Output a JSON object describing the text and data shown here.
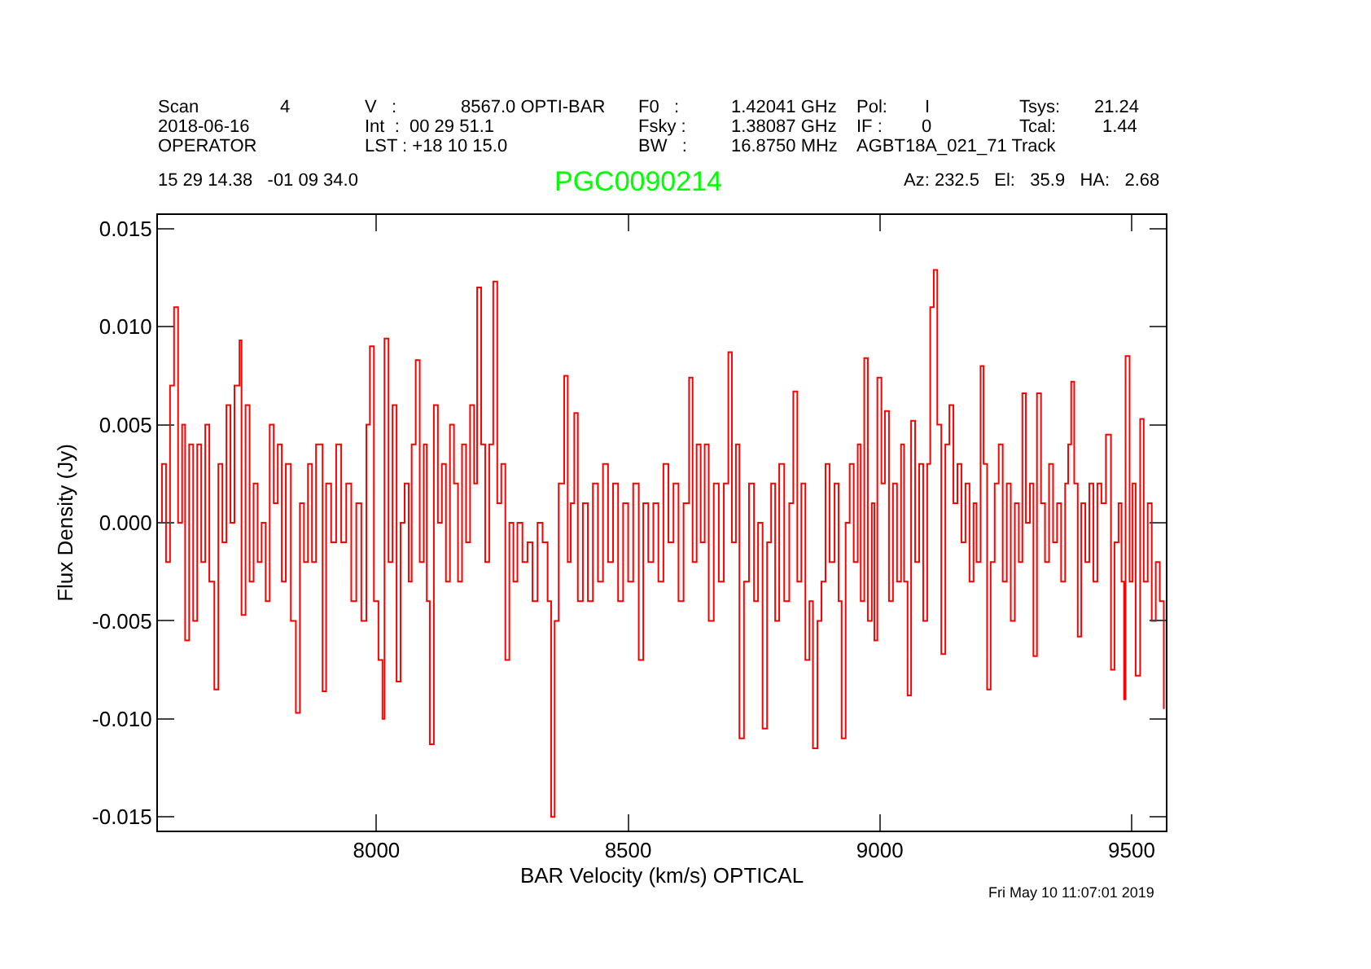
{
  "chart_data": {
    "type": "step",
    "title": "PGC0090214",
    "xlabel": "BAR Velocity (km/s) OPTICAL",
    "ylabel": "Flux Density (Jy)",
    "xlim": [
      7566,
      9568
    ],
    "xticks": [
      8000,
      8500,
      9000,
      9500
    ],
    "ylim": [
      -0.0157,
      0.0157
    ],
    "yticks": [
      {
        "value": -0.015,
        "label": "-0.015"
      },
      {
        "value": -0.01,
        "label": "-0.010"
      },
      {
        "value": -0.005,
        "label": "-0.005"
      },
      {
        "value": 0,
        "label": "0.000"
      },
      {
        "value": 0.005,
        "label": "0.005"
      },
      {
        "value": 0.01,
        "label": "0.010"
      },
      {
        "value": 0.015,
        "label": "0.015"
      }
    ],
    "grid": false,
    "annotations": [
      "Scan",
      "4",
      "V   :",
      "8567.0 OPTI-BAR",
      "F0   :",
      "1.42041 GHz",
      "Pol:",
      "I",
      "Tsys:",
      "21.24",
      "2018-06-16",
      "Int  :  00 29 51.1",
      "Fsky :",
      "1.38087 GHz",
      "IF :",
      "0",
      "Tcal:",
      "1.44",
      "OPERATOR",
      "LST : +18 10 15.0",
      "BW   :",
      "16.8750 MHz",
      "AGBT18A_021_71 Track",
      "15 29 14.38   -01 09 34.0",
      "Az: 232.5   El:   35.9   HA:   2.68",
      "Fri May 10 11:07:01 2019"
    ],
    "series": [
      {
        "color": "#ff0000",
        "x": [
          7566,
          7574,
          7582,
          7590,
          7598,
          7606,
          7614,
          7620,
          7628,
          7636,
          7644,
          7652,
          7660,
          7668,
          7678,
          7686,
          7694,
          7702,
          7710,
          7718,
          7728,
          7732,
          7740,
          7748,
          7756,
          7764,
          7772,
          7780,
          7788,
          7796,
          7804,
          7812,
          7820,
          7830,
          7840,
          7848,
          7856,
          7864,
          7872,
          7880,
          7893,
          7900,
          7910,
          7920,
          7930,
          7940,
          7950,
          7960,
          7970,
          7980,
          7987,
          7995,
          8004,
          8012,
          8016,
          8024,
          8032,
          8040,
          8048,
          8056,
          8064,
          8070,
          8078,
          8086,
          8094,
          8100,
          8106,
          8114,
          8122,
          8130,
          8138,
          8146,
          8154,
          8162,
          8170,
          8178,
          8186,
          8194,
          8200,
          8208,
          8216,
          8224,
          8232,
          8240,
          8248,
          8256,
          8264,
          8272,
          8280,
          8290,
          8300,
          8310,
          8320,
          8330,
          8340,
          8347,
          8354,
          8362,
          8373,
          8380,
          8386,
          8393,
          8400,
          8410,
          8420,
          8430,
          8440,
          8450,
          8460,
          8470,
          8480,
          8490,
          8500,
          8510,
          8521,
          8530,
          8540,
          8550,
          8560,
          8570,
          8580,
          8590,
          8600,
          8610,
          8621,
          8628,
          8636,
          8644,
          8652,
          8660,
          8670,
          8680,
          8690,
          8699,
          8706,
          8714,
          8721,
          8730,
          8740,
          8750,
          8758,
          8767,
          8776,
          8784,
          8792,
          8800,
          8810,
          8820,
          8828,
          8836,
          8844,
          8852,
          8860,
          8867,
          8876,
          8884,
          8892,
          8900,
          8910,
          8918,
          8924,
          8932,
          8940,
          8948,
          8956,
          8962,
          8969,
          8976,
          8984,
          8989,
          8995,
          9003,
          9010,
          9018,
          9026,
          9034,
          9042,
          9048,
          9055,
          9062,
          9070,
          9078,
          9086,
          9094,
          9100,
          9107,
          9114,
          9122,
          9130,
          9138,
          9146,
          9154,
          9162,
          9170,
          9178,
          9186,
          9192,
          9200,
          9206,
          9213,
          9220,
          9228,
          9236,
          9244,
          9252,
          9260,
          9268,
          9276,
          9283,
          9290,
          9298,
          9305,
          9312,
          9320,
          9328,
          9336,
          9344,
          9352,
          9360,
          9368,
          9374,
          9380,
          9386,
          9393,
          9400,
          9408,
          9416,
          9424,
          9432,
          9440,
          9449,
          9459,
          9466,
          9474,
          9480,
          9485,
          9488,
          9496,
          9502,
          9508,
          9517,
          9524,
          9532,
          9540,
          9548,
          9556,
          9564
        ],
        "values": [
          0.0,
          0.003,
          -0.002,
          0.007,
          0.011,
          0.0,
          0.005,
          -0.006,
          0.004,
          -0.005,
          0.004,
          -0.002,
          0.005,
          -0.003,
          -0.0085,
          0.003,
          -0.001,
          0.006,
          0.0,
          0.007,
          0.0093,
          -0.0047,
          0.006,
          -0.003,
          0.002,
          -0.002,
          0.0,
          -0.004,
          0.005,
          0.001,
          0.004,
          -0.003,
          0.003,
          -0.005,
          -0.0097,
          0.001,
          -0.002,
          0.003,
          -0.002,
          0.004,
          -0.0086,
          0.002,
          -0.001,
          0.004,
          -0.001,
          0.002,
          -0.004,
          0.001,
          -0.005,
          0.005,
          0.009,
          -0.004,
          -0.007,
          -0.01,
          0.0094,
          -0.002,
          0.006,
          -0.0081,
          0.0,
          0.002,
          -0.003,
          0.004,
          0.0083,
          -0.002,
          0.004,
          -0.004,
          -0.0113,
          0.006,
          0.0,
          0.003,
          -0.003,
          0.005,
          0.002,
          -0.003,
          0.004,
          -0.001,
          0.006,
          0.002,
          0.012,
          0.004,
          -0.002,
          0.004,
          0.0123,
          0.001,
          0.003,
          -0.007,
          0.0,
          -0.003,
          0.0,
          -0.002,
          -0.001,
          -0.004,
          0.0,
          -0.001,
          -0.004,
          -0.015,
          -0.005,
          0.002,
          0.0075,
          -0.002,
          0.001,
          0.0056,
          -0.004,
          0.001,
          -0.004,
          0.002,
          -0.003,
          0.003,
          -0.002,
          0.002,
          -0.004,
          0.001,
          -0.003,
          0.002,
          -0.007,
          0.001,
          -0.002,
          0.001,
          -0.003,
          0.003,
          -0.001,
          0.002,
          -0.004,
          0.001,
          0.0074,
          -0.002,
          0.004,
          -0.001,
          0.004,
          -0.005,
          0.002,
          -0.003,
          0.002,
          0.0087,
          -0.001,
          0.004,
          -0.011,
          -0.003,
          0.002,
          -0.004,
          0.0,
          -0.0105,
          -0.001,
          0.002,
          -0.005,
          0.003,
          -0.004,
          0.001,
          0.0067,
          -0.003,
          0.002,
          -0.007,
          -0.004,
          -0.0115,
          -0.005,
          -0.003,
          0.003,
          -0.002,
          0.002,
          -0.004,
          -0.011,
          0.0,
          0.003,
          -0.002,
          0.004,
          -0.004,
          0.0084,
          -0.005,
          0.001,
          -0.006,
          0.0074,
          0.002,
          0.0057,
          -0.004,
          0.002,
          -0.003,
          0.004,
          -0.003,
          -0.0088,
          0.0052,
          -0.002,
          0.003,
          -0.005,
          0.003,
          0.011,
          0.0129,
          0.005,
          -0.0067,
          0.004,
          0.006,
          0.001,
          0.003,
          -0.001,
          0.002,
          -0.003,
          0.001,
          -0.002,
          0.008,
          0.003,
          -0.0085,
          -0.002,
          0.002,
          0.004,
          -0.003,
          0.002,
          -0.005,
          0.001,
          -0.002,
          0.0066,
          0.0,
          0.002,
          -0.0068,
          0.0066,
          0.001,
          -0.002,
          0.003,
          -0.001,
          0.001,
          -0.003,
          0.002,
          0.004,
          0.0072,
          0.002,
          -0.0058,
          0.001,
          -0.002,
          0.002,
          -0.003,
          0.002,
          0.001,
          0.0045,
          -0.0075,
          -0.001,
          0.001,
          -0.003,
          -0.009,
          0.0085,
          -0.003,
          0.002,
          -0.0078,
          0.0053,
          -0.003,
          0.001,
          -0.005,
          -0.002,
          -0.004,
          -0.0095
        ]
      }
    ]
  }
}
